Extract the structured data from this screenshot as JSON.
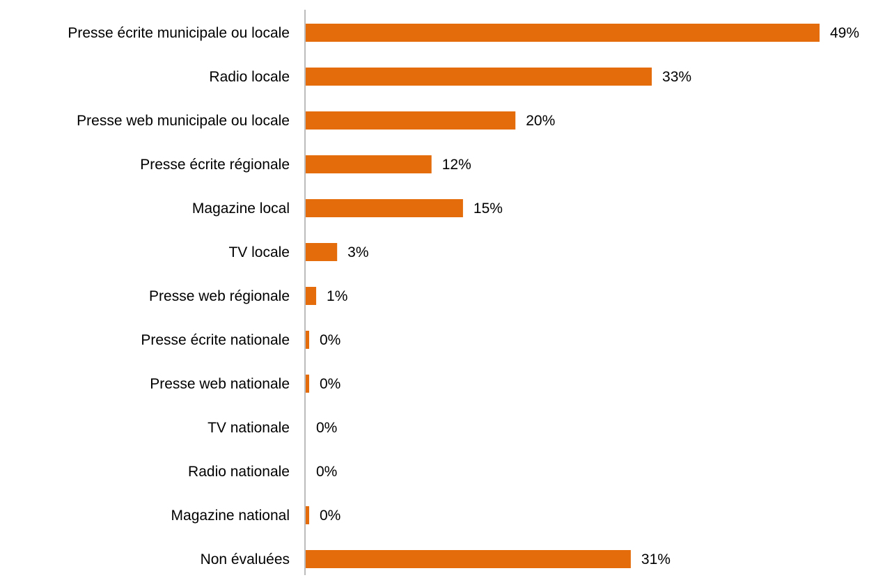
{
  "chart_data": {
    "type": "bar",
    "orientation": "horizontal",
    "categories": [
      "Presse écrite municipale ou locale",
      "Radio locale",
      "Presse web municipale ou locale",
      "Presse écrite régionale",
      "Magazine local",
      "TV locale",
      "Presse web régionale",
      "Presse écrite nationale",
      "Presse web nationale",
      "TV nationale",
      "Radio nationale",
      "Magazine national",
      "Non évaluées"
    ],
    "values": [
      49,
      33,
      20,
      12,
      15,
      3,
      1,
      0.3,
      0.3,
      0,
      0,
      0.3,
      31
    ],
    "data_labels": [
      "49%",
      "33%",
      "20%",
      "12%",
      "15%",
      "3%",
      "1%",
      "0%",
      "0%",
      "0%",
      "0%",
      "0%",
      "31%"
    ],
    "unit": "%",
    "xlim": [
      0,
      50
    ],
    "grid": false,
    "legend": "none",
    "colors": {
      "bar": "#E46C0A",
      "axis": "#A6A6A6",
      "text": "#000000"
    }
  }
}
